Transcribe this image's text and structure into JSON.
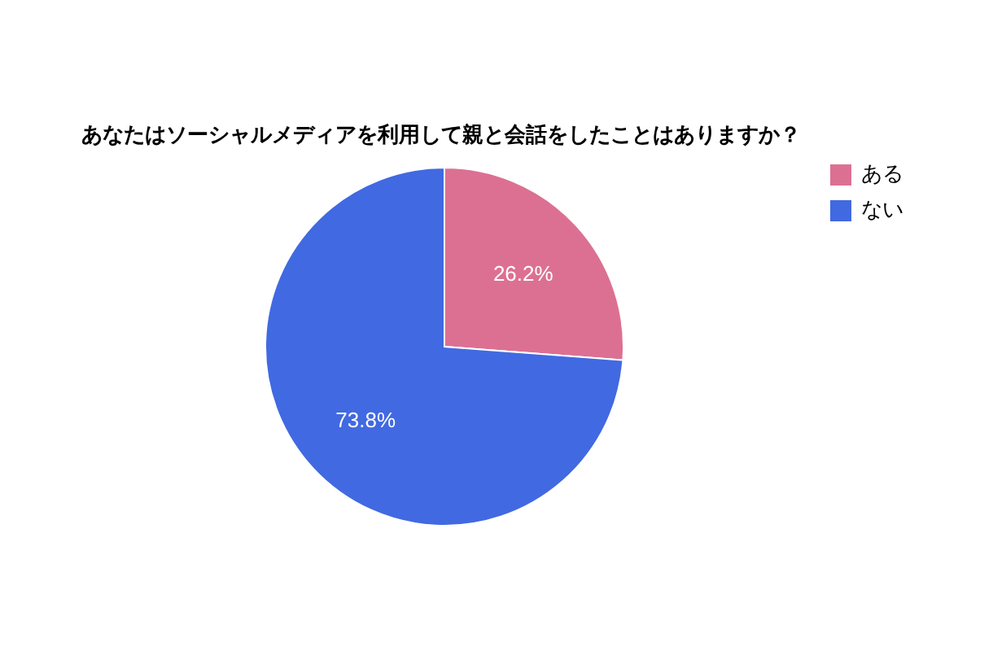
{
  "chart_data": {
    "type": "pie",
    "title": "あなたはソーシャルメディアを利用して親と会話をしたことはありますか？",
    "categories": [
      "ある",
      "ない"
    ],
    "values": [
      26.2,
      73.8
    ],
    "colors": [
      "#dc7093",
      "#4169e1"
    ],
    "value_labels": [
      "26.2%",
      "73.8%"
    ],
    "legend": "top right"
  }
}
